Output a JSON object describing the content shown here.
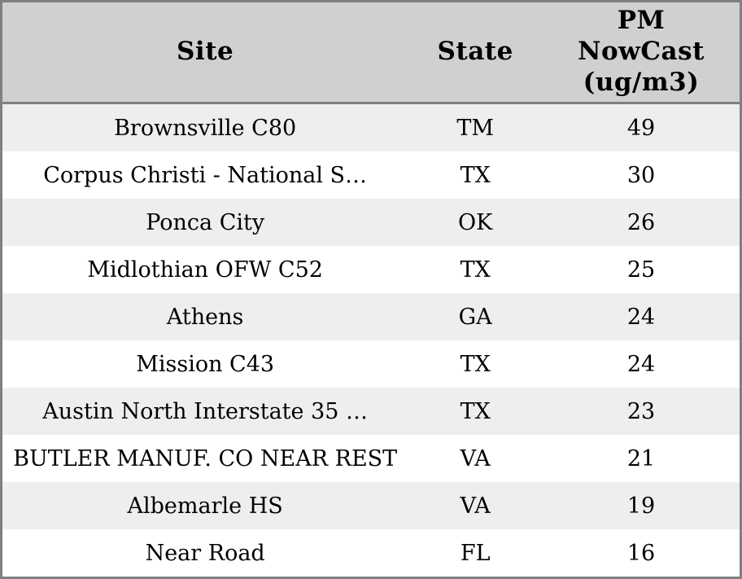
{
  "chart_data": {
    "type": "table",
    "title": "",
    "legend": "none",
    "grid": "none",
    "columns": [
      {
        "id": "site",
        "label": "Site"
      },
      {
        "id": "state",
        "label": "State"
      },
      {
        "id": "value",
        "label": "PM\nNowCast\n(ug/m3)"
      }
    ],
    "rows": [
      {
        "site": "Brownsville C80",
        "state": "TM",
        "value": 49
      },
      {
        "site": "Corpus Christi - National S…",
        "state": "TX",
        "value": 30
      },
      {
        "site": "Ponca City",
        "state": "OK",
        "value": 26
      },
      {
        "site": "Midlothian OFW C52",
        "state": "TX",
        "value": 25
      },
      {
        "site": "Athens",
        "state": "GA",
        "value": 24
      },
      {
        "site": "Mission C43",
        "state": "TX",
        "value": 24
      },
      {
        "site": "Austin North Interstate 35 …",
        "state": "TX",
        "value": 23
      },
      {
        "site": "BUTLER MANUF. CO NEAR REST",
        "state": "VA",
        "value": 21
      },
      {
        "site": "Albemarle HS",
        "state": "VA",
        "value": 19
      },
      {
        "site": "Near Road",
        "state": "FL",
        "value": 16
      }
    ]
  },
  "colors": {
    "header_bg": "#d0d0d0",
    "row_stripe_bg": "#eeeeee",
    "row_bg": "#ffffff",
    "border": "#808080",
    "text": "#000000"
  }
}
